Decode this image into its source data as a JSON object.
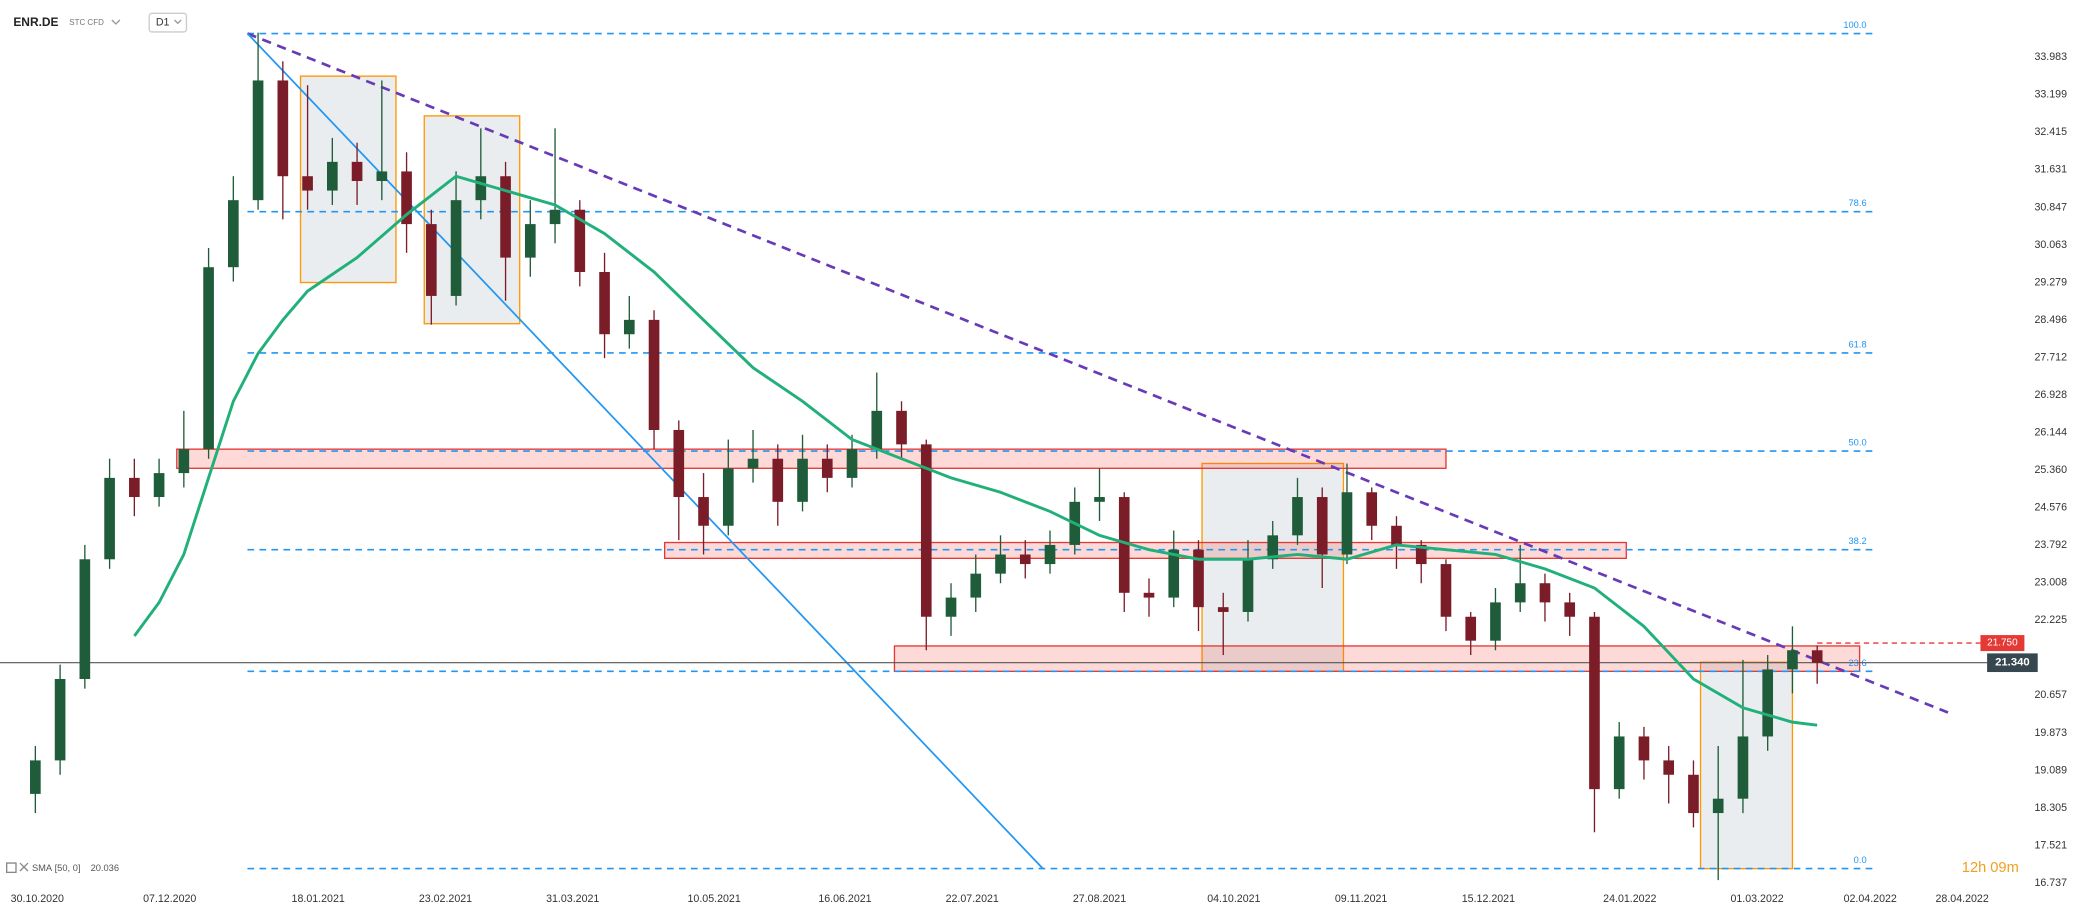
{
  "chart_data": {
    "type": "candlestick",
    "symbol": "ENR.DE",
    "instrument": "STC CFD",
    "interval": "D1",
    "x": [
      "30.10.2020",
      "06.11.2020",
      "13.11.2020",
      "20.11.2020",
      "27.11.2020",
      "04.12.2020",
      "11.12.2020",
      "18.12.2020",
      "25.12.2020",
      "01.01.2021",
      "08.01.2021",
      "15.01.2021",
      "22.01.2021",
      "29.01.2021",
      "05.02.2021",
      "12.02.2021",
      "19.02.2021",
      "26.02.2021",
      "05.03.2021",
      "12.03.2021",
      "19.03.2021",
      "26.03.2021",
      "02.04.2021",
      "09.04.2021",
      "16.04.2021",
      "23.04.2021",
      "30.04.2021",
      "07.05.2021",
      "14.05.2021",
      "21.05.2021",
      "28.05.2021",
      "04.06.2021",
      "11.06.2021",
      "18.06.2021",
      "25.06.2021",
      "02.07.2021",
      "09.07.2021",
      "16.07.2021",
      "23.07.2021",
      "30.07.2021",
      "06.08.2021",
      "13.08.2021",
      "20.08.2021",
      "27.08.2021",
      "03.09.2021",
      "10.09.2021",
      "17.09.2021",
      "24.09.2021",
      "01.10.2021",
      "08.10.2021",
      "15.10.2021",
      "22.10.2021",
      "29.10.2021",
      "05.11.2021",
      "12.11.2021",
      "19.11.2021",
      "26.11.2021",
      "03.12.2021",
      "10.12.2021",
      "17.12.2021",
      "24.12.2021",
      "31.12.2021",
      "07.01.2022",
      "14.01.2022",
      "21.01.2022",
      "28.01.2022",
      "04.02.2022",
      "11.02.2022",
      "18.02.2022",
      "25.02.2022",
      "04.03.2022",
      "11.03.2022",
      "18.03.2022"
    ],
    "open": [
      18.6,
      19.3,
      21.0,
      23.5,
      25.2,
      24.8,
      25.3,
      25.8,
      29.6,
      31.0,
      33.5,
      31.5,
      31.2,
      31.8,
      31.4,
      31.6,
      30.5,
      29.0,
      31.0,
      31.5,
      29.8,
      30.5,
      30.8,
      29.5,
      28.2,
      28.5,
      26.2,
      24.8,
      24.2,
      25.4,
      25.6,
      24.7,
      25.6,
      25.2,
      25.8,
      26.6,
      25.9,
      22.3,
      22.7,
      23.2,
      23.6,
      23.4,
      23.8,
      24.7,
      24.8,
      22.8,
      22.7,
      23.7,
      22.5,
      22.4,
      23.5,
      24.0,
      24.8,
      23.6,
      24.9,
      24.2,
      23.8,
      23.4,
      22.3,
      21.8,
      22.6,
      23.0,
      22.6,
      22.3,
      18.7,
      19.8,
      19.3,
      19.0,
      18.2,
      18.5,
      19.8,
      21.2,
      21.6
    ],
    "high": [
      19.6,
      21.3,
      23.8,
      25.6,
      25.6,
      25.6,
      26.6,
      30.0,
      31.5,
      34.5,
      33.9,
      33.4,
      32.3,
      32.2,
      33.5,
      32.0,
      30.8,
      31.6,
      32.5,
      31.8,
      31.0,
      32.5,
      31.0,
      29.9,
      29.0,
      28.7,
      26.4,
      25.3,
      26.0,
      26.2,
      25.9,
      26.1,
      25.9,
      26.1,
      27.4,
      26.8,
      26.0,
      23.0,
      23.6,
      24.0,
      23.9,
      24.1,
      25.0,
      25.4,
      24.9,
      23.1,
      24.1,
      23.9,
      22.8,
      23.9,
      24.3,
      25.2,
      25.0,
      25.5,
      25.0,
      24.4,
      23.9,
      23.5,
      22.4,
      22.9,
      23.8,
      23.2,
      22.8,
      22.4,
      20.1,
      20.0,
      19.6,
      19.3,
      19.6,
      21.4,
      21.5,
      22.1,
      21.7
    ],
    "low": [
      18.2,
      19.0,
      20.8,
      23.3,
      24.4,
      24.6,
      25.0,
      25.6,
      29.3,
      30.8,
      30.6,
      30.8,
      30.9,
      30.9,
      31.0,
      29.9,
      28.4,
      28.8,
      30.6,
      28.9,
      29.4,
      30.1,
      29.2,
      27.7,
      27.9,
      25.8,
      23.9,
      23.6,
      24.0,
      25.1,
      24.2,
      24.5,
      24.9,
      25.0,
      25.6,
      25.6,
      21.6,
      21.9,
      22.4,
      23.0,
      23.1,
      23.2,
      23.6,
      24.3,
      22.4,
      22.3,
      22.5,
      22.0,
      21.5,
      22.2,
      23.3,
      23.8,
      22.9,
      23.4,
      23.9,
      23.3,
      23.0,
      22.0,
      21.5,
      21.6,
      22.4,
      22.2,
      21.9,
      17.8,
      18.5,
      18.9,
      18.4,
      17.9,
      16.8,
      18.2,
      19.5,
      20.7,
      20.9
    ],
    "close": [
      19.3,
      21.0,
      23.5,
      25.2,
      24.8,
      25.3,
      25.8,
      29.6,
      31.0,
      33.5,
      31.5,
      31.2,
      31.8,
      31.4,
      31.6,
      30.5,
      29.0,
      31.0,
      31.5,
      29.8,
      30.5,
      30.8,
      29.5,
      28.2,
      28.5,
      26.2,
      24.8,
      24.2,
      25.4,
      25.6,
      24.7,
      25.6,
      25.2,
      25.8,
      26.6,
      25.9,
      22.3,
      22.7,
      23.2,
      23.6,
      23.4,
      23.8,
      24.7,
      24.8,
      22.8,
      22.7,
      23.7,
      22.5,
      22.4,
      23.5,
      24.0,
      24.8,
      23.6,
      24.9,
      24.2,
      23.8,
      23.4,
      22.3,
      21.8,
      22.6,
      23.0,
      22.6,
      22.3,
      18.7,
      19.8,
      19.3,
      19.0,
      18.2,
      18.5,
      19.8,
      21.2,
      21.6,
      21.34
    ],
    "up_color": "#1f5c3a",
    "down_color": "#7b1d28",
    "xlim": [
      "20.10.2020",
      "19.05.2022"
    ],
    "xticks": [
      "30.10.2020",
      "07.12.2020",
      "18.01.2021",
      "23.02.2021",
      "31.03.2021",
      "10.05.2021",
      "16.06.2021",
      "22.07.2021",
      "27.08.2021",
      "04.10.2021",
      "09.11.2021",
      "15.12.2021",
      "24.01.2022",
      "01.03.2022",
      "02.04.2022",
      "28.04.2022"
    ],
    "ylim": [
      16.6,
      35.18
    ],
    "yticks": [
      16.737,
      17.521,
      18.305,
      19.089,
      19.873,
      20.657,
      22.225,
      23.008,
      23.792,
      24.576,
      {
        "value": 25.36,
        "label": "25.360"
      },
      26.144,
      26.928,
      27.712,
      28.496,
      29.279,
      30.063,
      30.847,
      31.631,
      32.415,
      33.199,
      33.983
    ],
    "sma": {
      "name": "SMA",
      "params": "[50, 0]",
      "color": "#22b07a",
      "x": [
        "27.11.2020",
        "04.12.2020",
        "11.12.2020",
        "18.12.2020",
        "25.12.2020",
        "01.01.2021",
        "08.01.2021",
        "15.01.2021",
        "29.01.2021",
        "12.02.2021",
        "26.02.2021",
        "12.03.2021",
        "26.03.2021",
        "09.04.2021",
        "23.04.2021",
        "07.05.2021",
        "21.05.2021",
        "04.06.2021",
        "18.06.2021",
        "02.07.2021",
        "16.07.2021",
        "30.07.2021",
        "13.08.2021",
        "27.08.2021",
        "10.09.2021",
        "24.09.2021",
        "08.10.2021",
        "22.10.2021",
        "05.11.2021",
        "19.11.2021",
        "03.12.2021",
        "17.12.2021",
        "31.12.2021",
        "14.01.2022",
        "28.01.2022",
        "11.02.2022",
        "25.02.2022",
        "11.03.2022",
        "18.03.2022"
      ],
      "values": [
        21.9,
        22.6,
        23.6,
        25.2,
        26.8,
        27.8,
        28.5,
        29.1,
        29.8,
        30.7,
        31.5,
        31.2,
        30.9,
        30.3,
        29.5,
        28.5,
        27.5,
        26.8,
        26.0,
        25.6,
        25.2,
        24.9,
        24.5,
        24.0,
        23.7,
        23.5,
        23.5,
        23.6,
        23.5,
        23.8,
        23.7,
        23.6,
        23.3,
        22.9,
        22.1,
        21.0,
        20.4,
        20.1,
        20.036
      ]
    },
    "fibonacci": {
      "color": "#2196f3",
      "from": "29.12.2020",
      "to": "04.04.2022",
      "levels": [
        {
          "value": 100,
          "label": "100.0"
        },
        78.6,
        61.8,
        {
          "value": 50,
          "label": "50.0"
        },
        38.2,
        23.6,
        {
          "value": 0,
          "label": "0.0"
        }
      ],
      "prices": [
        34.48,
        30.76,
        27.81,
        25.76,
        23.7,
        21.16,
        17.04
      ]
    },
    "trendlines": [
      {
        "color": "#673ab7",
        "dashed": true,
        "x": [
          "29.12.2020",
          "24.04.2022"
        ],
        "y": [
          34.48,
          20.3
        ]
      },
      {
        "color": "#2196f3",
        "dashed": false,
        "x": [
          "29.12.2020",
          "11.08.2021"
        ],
        "y": [
          34.48,
          17.04
        ]
      }
    ],
    "zones": [
      {
        "x": [
          "09.12.2020",
          "03.12.2021"
        ],
        "y": [
          25.4,
          25.8
        ]
      },
      {
        "x": [
          "26.04.2021",
          "23.01.2022"
        ],
        "y": [
          23.52,
          23.85
        ]
      },
      {
        "x": [
          "30.06.2021",
          "30.03.2022"
        ],
        "y": [
          21.16,
          21.69
        ]
      }
    ],
    "boxes": [
      {
        "x": [
          "13.01.2021",
          "09.02.2021"
        ],
        "y": [
          29.28,
          33.59
        ]
      },
      {
        "x": [
          "17.02.2021",
          "16.03.2021"
        ],
        "y": [
          28.42,
          32.76
        ]
      },
      {
        "x": [
          "25.09.2021",
          "04.11.2021"
        ],
        "y": [
          21.16,
          25.5
        ]
      },
      {
        "x": [
          "13.02.2022",
          "11.03.2022"
        ],
        "y": [
          17.04,
          21.35
        ]
      }
    ],
    "last_price": {
      "value": 21.34,
      "label": "21.340"
    },
    "alert_price": {
      "value": 21.75,
      "label": "21.750"
    },
    "timer": "12h 09m"
  }
}
